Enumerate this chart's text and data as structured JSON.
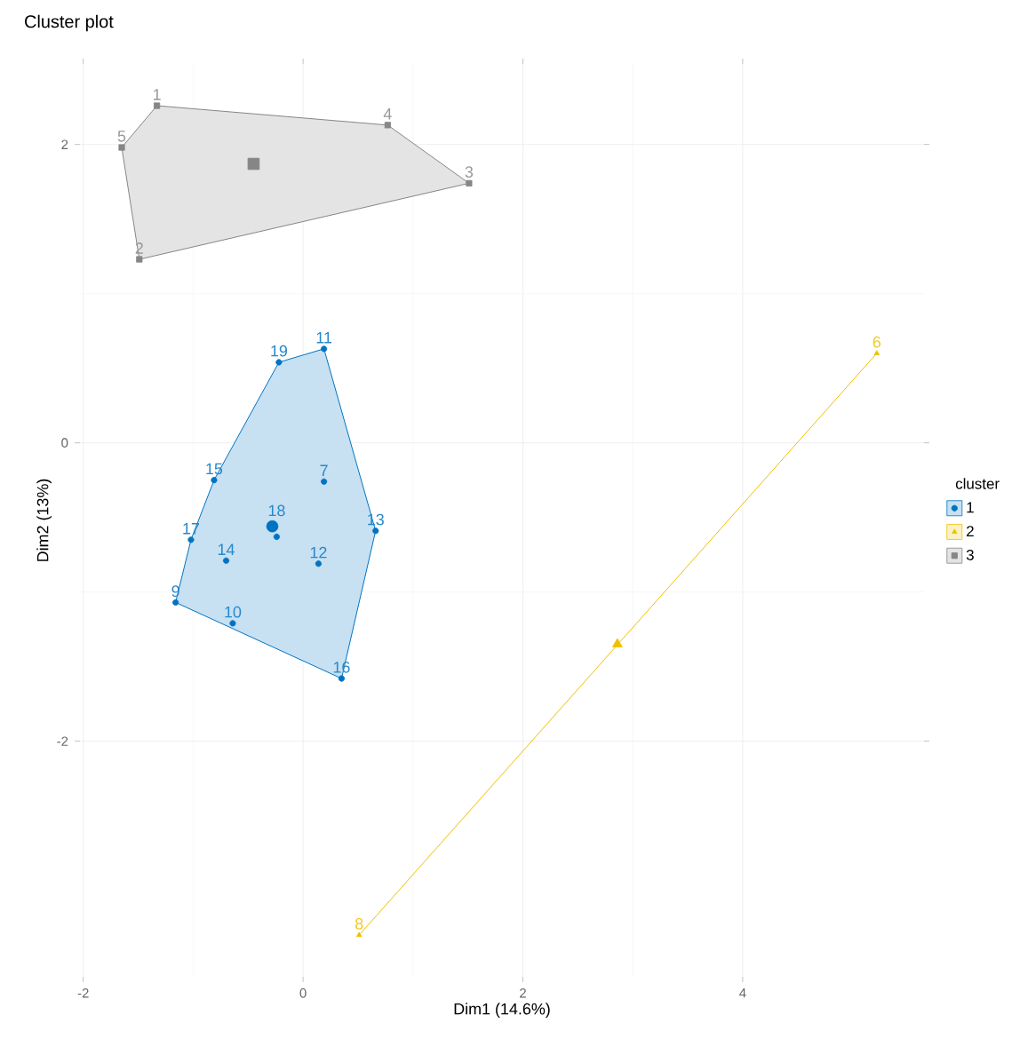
{
  "chart_data": {
    "type": "scatter",
    "title": "Cluster plot",
    "xlabel": "Dim1 (14.6%)",
    "ylabel": "Dim2 (13%)",
    "legend_title": "cluster",
    "xlim": [
      -2.03,
      5.65
    ],
    "ylim": [
      -3.58,
      2.54
    ],
    "xticks": [
      -2,
      0,
      2,
      4
    ],
    "yticks": [
      -2,
      0,
      2
    ],
    "grid": true,
    "legend": "right",
    "series": [
      {
        "name": "1",
        "color": "#0073c2",
        "marker": "circle",
        "x": [
          0.19,
          -1.16,
          -0.64,
          0.19,
          0.14,
          0.66,
          -0.7,
          -0.81,
          0.35,
          -1.02,
          -0.24,
          -0.22
        ],
        "values": [
          -0.26,
          -1.07,
          -1.21,
          0.63,
          -0.81,
          -0.59,
          -0.79,
          -0.25,
          -1.58,
          -0.65,
          -0.63,
          0.54
        ]
      },
      {
        "name": "2",
        "color": "#efc000",
        "marker": "triangle",
        "x": [
          5.22,
          0.51
        ],
        "values": [
          0.6,
          -3.3
        ]
      },
      {
        "name": "3",
        "color": "#868686",
        "marker": "square",
        "x": [
          -1.33,
          -1.49,
          1.51,
          0.77,
          -1.65
        ],
        "values": [
          2.26,
          1.23,
          1.74,
          2.13,
          1.98
        ]
      },
      {
        "color": "#0073c2",
        "marker": "circle",
        "x": [
          -0.28
        ],
        "values": [
          -0.56
        ]
      },
      {
        "color": "#efc000",
        "marker": "triangle",
        "x": [
          2.86
        ],
        "values": [
          -1.35
        ]
      },
      {
        "color": "#868686",
        "marker": "square",
        "x": [
          -0.45
        ],
        "values": [
          1.87
        ]
      }
    ],
    "annotations": [
      {
        "text": "1",
        "x": -1.33,
        "y": 2.26
      },
      {
        "text": "2",
        "x": -1.49,
        "y": 1.23
      },
      {
        "text": "3",
        "x": 1.51,
        "y": 1.74
      },
      {
        "text": "4",
        "x": 0.77,
        "y": 2.13
      },
      {
        "text": "5",
        "x": -1.65,
        "y": 1.98
      },
      {
        "text": "6",
        "x": 5.22,
        "y": 0.6
      },
      {
        "text": "7",
        "x": 0.19,
        "y": -0.26
      },
      {
        "text": "8",
        "x": 0.51,
        "y": -3.3
      },
      {
        "text": "9",
        "x": -1.16,
        "y": -1.07
      },
      {
        "text": "10",
        "x": -0.64,
        "y": -1.21
      },
      {
        "text": "11",
        "x": 0.19,
        "y": 0.63
      },
      {
        "text": "12",
        "x": 0.14,
        "y": -0.81
      },
      {
        "text": "13",
        "x": 0.66,
        "y": -0.59
      },
      {
        "text": "14",
        "x": -0.7,
        "y": -0.79
      },
      {
        "text": "15",
        "x": -0.81,
        "y": -0.25
      },
      {
        "text": "16",
        "x": 0.35,
        "y": -1.58
      },
      {
        "text": "17",
        "x": -1.02,
        "y": -0.65
      },
      {
        "text": "18",
        "x": -0.24,
        "y": -0.63
      },
      {
        "text": "19",
        "x": -0.22,
        "y": 0.54
      }
    ]
  }
}
